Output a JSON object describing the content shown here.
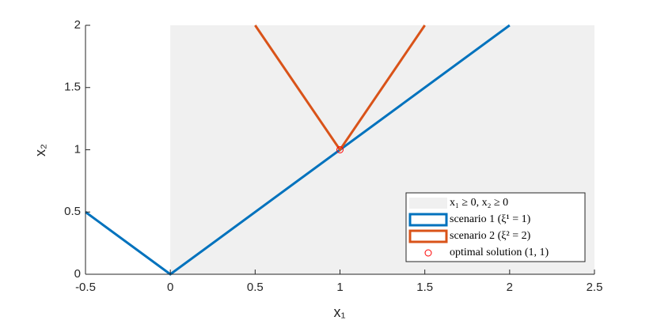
{
  "chart_data": {
    "type": "line",
    "xlabel": "x₁",
    "ylabel": "x₂",
    "xlim": [
      -0.5,
      2.5
    ],
    "ylim": [
      0,
      2
    ],
    "xticks": [
      -0.5,
      0,
      0.5,
      1,
      1.5,
      2,
      2.5
    ],
    "yticks": [
      0,
      0.5,
      1,
      1.5,
      2
    ],
    "region": {
      "name": "x₁ ≥ 0, x₂ ≥ 0",
      "color": "#f0f0f0",
      "x_min": 0,
      "y_min": 0
    },
    "series": [
      {
        "name": "scenario 1 (ξ¹ = 1)",
        "color": "#0072bd",
        "x": [
          -0.5,
          0,
          2
        ],
        "values": [
          0.5,
          0,
          2
        ]
      },
      {
        "name": "scenario 2 (ξ² = 2)",
        "color": "#d95319",
        "x": [
          0.5,
          1,
          1.5
        ],
        "values": [
          2,
          1,
          2
        ]
      }
    ],
    "optimal": {
      "name": "optimal solution (1, 1)",
      "color": "#ff0000",
      "x": 1,
      "y": 1
    },
    "legend": "bottom-right"
  }
}
